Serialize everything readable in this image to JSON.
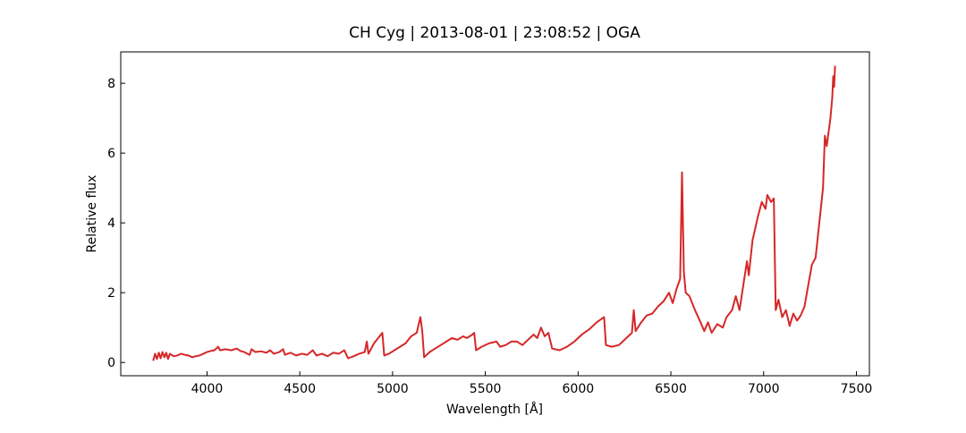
{
  "chart_data": {
    "type": "line",
    "title": "CH Cyg | 2013-08-01 | 23:08:52 | OGA",
    "x_label": "Wavelength [Å]",
    "y_label": "Relative flux",
    "xlim": [
      3535,
      7570
    ],
    "ylim": [
      -0.38,
      8.9
    ],
    "xticks": [
      4000,
      4500,
      5000,
      5500,
      6000,
      6500,
      7000,
      7500
    ],
    "yticks": [
      0,
      2,
      4,
      6,
      8
    ],
    "series": [
      {
        "name": "CH Cyg",
        "color": "#d62728",
        "x": [
          3710,
          3720,
          3730,
          3740,
          3750,
          3760,
          3770,
          3780,
          3790,
          3800,
          3820,
          3840,
          3860,
          3880,
          3900,
          3920,
          3940,
          3960,
          3980,
          4000,
          4020,
          4040,
          4060,
          4070,
          4100,
          4130,
          4160,
          4180,
          4200,
          4230,
          4240,
          4260,
          4290,
          4320,
          4340,
          4360,
          4390,
          4410,
          4420,
          4450,
          4480,
          4510,
          4540,
          4570,
          4590,
          4620,
          4650,
          4680,
          4710,
          4740,
          4760,
          4790,
          4820,
          4850,
          4861,
          4870,
          4900,
          4930,
          4945,
          4955,
          4980,
          5010,
          5040,
          5070,
          5100,
          5130,
          5150,
          5160,
          5170,
          5200,
          5230,
          5260,
          5290,
          5320,
          5350,
          5380,
          5400,
          5430,
          5440,
          5450,
          5480,
          5520,
          5560,
          5580,
          5610,
          5640,
          5670,
          5700,
          5730,
          5760,
          5780,
          5800,
          5820,
          5840,
          5860,
          5900,
          5940,
          5980,
          6020,
          6060,
          6100,
          6140,
          6150,
          6180,
          6220,
          6260,
          6290,
          6300,
          6310,
          6340,
          6370,
          6400,
          6430,
          6460,
          6490,
          6510,
          6530,
          6550,
          6560,
          6570,
          6580,
          6600,
          6630,
          6660,
          6680,
          6700,
          6720,
          6750,
          6780,
          6800,
          6830,
          6850,
          6870,
          6890,
          6910,
          6920,
          6940,
          6970,
          6990,
          7010,
          7020,
          7040,
          7055,
          7065,
          7080,
          7100,
          7120,
          7140,
          7160,
          7180,
          7200,
          7220,
          7240,
          7260,
          7280,
          7300,
          7320,
          7330,
          7340,
          7360,
          7370,
          7375,
          7380,
          7385
        ],
        "values": [
          0.05,
          0.25,
          0.1,
          0.28,
          0.12,
          0.3,
          0.15,
          0.28,
          0.1,
          0.25,
          0.18,
          0.2,
          0.25,
          0.22,
          0.2,
          0.15,
          0.18,
          0.2,
          0.25,
          0.3,
          0.33,
          0.35,
          0.45,
          0.35,
          0.38,
          0.35,
          0.4,
          0.33,
          0.3,
          0.22,
          0.38,
          0.3,
          0.32,
          0.28,
          0.35,
          0.25,
          0.3,
          0.38,
          0.22,
          0.28,
          0.2,
          0.25,
          0.22,
          0.35,
          0.2,
          0.25,
          0.18,
          0.28,
          0.25,
          0.35,
          0.12,
          0.18,
          0.25,
          0.3,
          0.6,
          0.25,
          0.55,
          0.75,
          0.85,
          0.2,
          0.25,
          0.35,
          0.45,
          0.55,
          0.75,
          0.85,
          1.3,
          0.9,
          0.15,
          0.3,
          0.4,
          0.5,
          0.6,
          0.7,
          0.65,
          0.75,
          0.7,
          0.8,
          0.85,
          0.35,
          0.45,
          0.55,
          0.6,
          0.45,
          0.5,
          0.6,
          0.6,
          0.5,
          0.65,
          0.8,
          0.7,
          1.0,
          0.75,
          0.85,
          0.4,
          0.35,
          0.45,
          0.6,
          0.8,
          0.95,
          1.15,
          1.3,
          0.5,
          0.45,
          0.5,
          0.7,
          0.85,
          1.5,
          0.9,
          1.15,
          1.35,
          1.4,
          1.6,
          1.75,
          2.0,
          1.7,
          2.1,
          2.4,
          5.45,
          2.6,
          2.0,
          1.9,
          1.5,
          1.15,
          0.9,
          1.15,
          0.85,
          1.1,
          1.0,
          1.3,
          1.5,
          1.9,
          1.5,
          2.2,
          2.9,
          2.5,
          3.5,
          4.2,
          4.6,
          4.4,
          4.8,
          4.6,
          4.7,
          1.5,
          1.8,
          1.3,
          1.5,
          1.05,
          1.4,
          1.2,
          1.35,
          1.6,
          2.2,
          2.8,
          3.0,
          4.0,
          5.0,
          6.5,
          6.2,
          7.0,
          7.6,
          8.2,
          7.9,
          8.5
        ]
      }
    ]
  }
}
